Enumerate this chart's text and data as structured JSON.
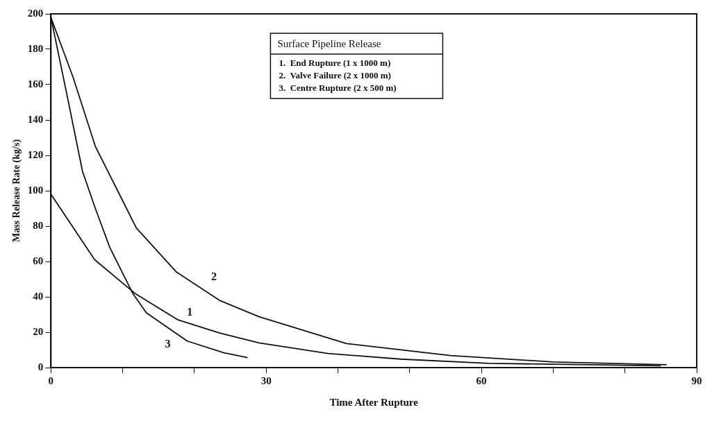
{
  "chart_data": {
    "type": "line",
    "xlabel": "Time After Rupture",
    "ylabel": "Mass Release Rate (kg/s)",
    "legend_title": "Surface Pipeline Release",
    "x": [
      0,
      3.1,
      6.2,
      9.3,
      11.9,
      17.5,
      23.5,
      29,
      41.2,
      55.7,
      70,
      85.8
    ],
    "series": [
      {
        "name": "1",
        "color": "#111111",
        "x": [
          0,
          6.1,
          11.7,
          17.7,
          23.5,
          29,
          38.6,
          48.7,
          61,
          85
        ],
        "values": [
          98,
          61,
          42,
          27,
          19.6,
          14,
          8,
          4.8,
          2.4,
          1
        ]
      },
      {
        "name": "2",
        "color": "#111111",
        "values": [
          198,
          164,
          125,
          100,
          79,
          54,
          38,
          28.8,
          13.6,
          6.8,
          3.2,
          1.6
        ]
      },
      {
        "name": "3",
        "color": "#111111",
        "x": [
          0,
          2.4,
          4.4,
          6.1,
          8.2,
          11.4,
          13.3,
          19,
          24.1,
          27.4
        ],
        "values": [
          198,
          151,
          111,
          91,
          68,
          42,
          31,
          15,
          8.4,
          5.6
        ]
      }
    ],
    "annotations": [
      "1.  End Rupture (1 x 1000 m)",
      "2.  Valve Failure (2 x 1000 m)",
      "3.  Centre Rupture (2 x 500 m)"
    ],
    "xlim": [
      0,
      90
    ],
    "ylim": [
      0,
      200
    ],
    "xticks": [
      0,
      {
        "value": 10,
        "label": null
      },
      {
        "value": 20,
        "label": null
      },
      30,
      {
        "value": 40,
        "label": null
      },
      {
        "value": 50,
        "label": null
      },
      60,
      {
        "value": 70,
        "label": null
      },
      {
        "value": 80,
        "label": null
      },
      90
    ],
    "yticks": [
      0,
      20,
      40,
      60,
      80,
      100,
      120,
      140,
      160,
      180,
      200
    ],
    "grid": false,
    "legend": false,
    "marker": "none",
    "line_style": "solid"
  }
}
